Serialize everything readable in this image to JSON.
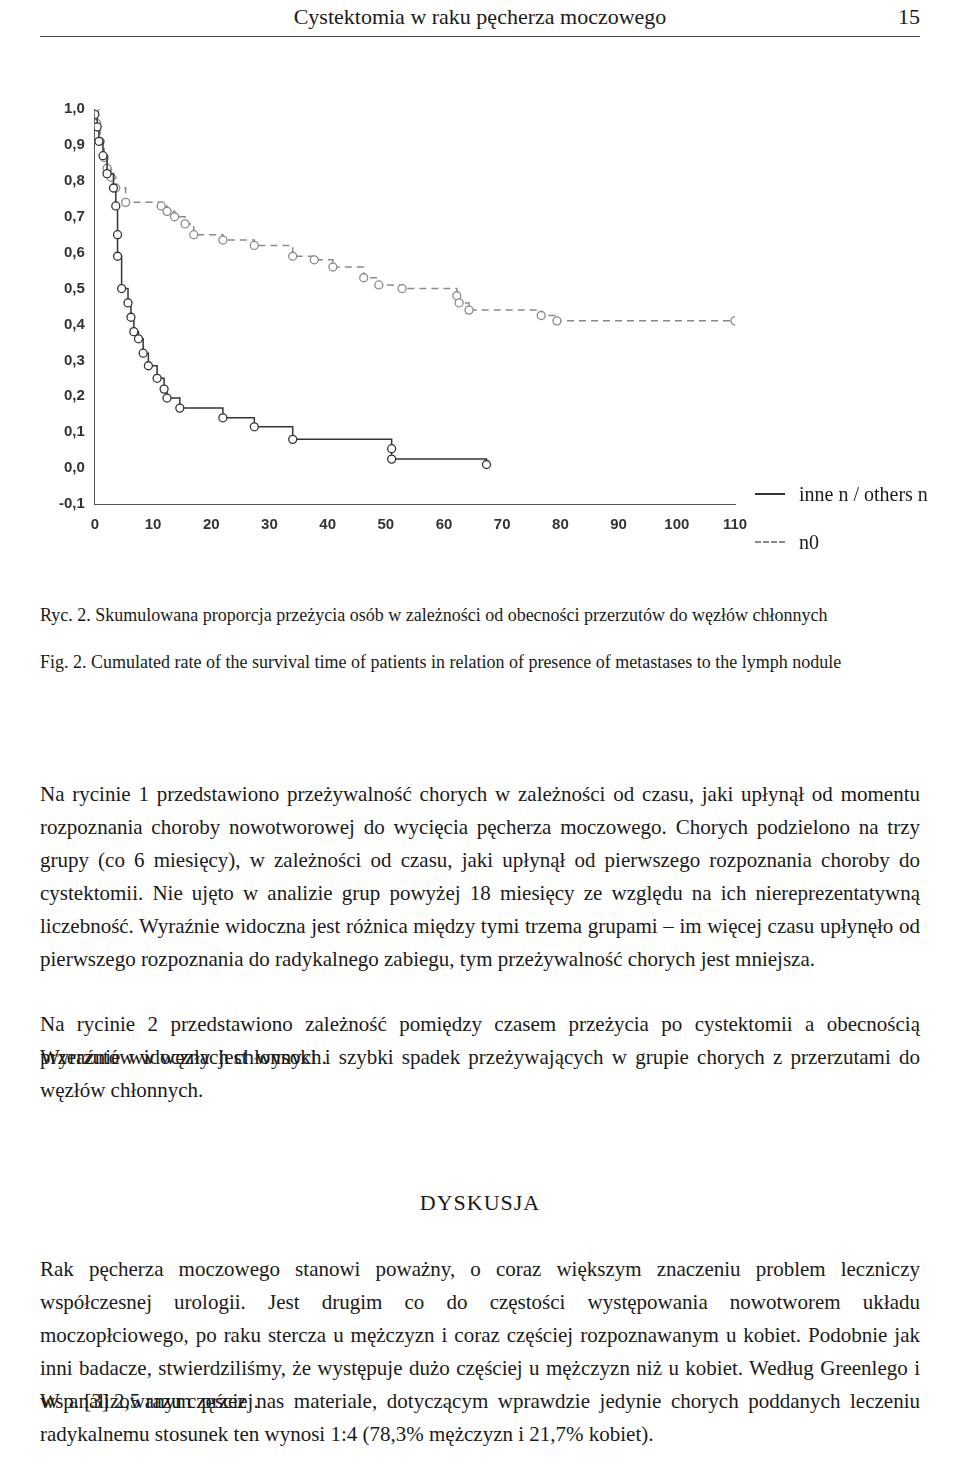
{
  "header": {
    "title": "Cystektomia w raku pęcherza moczowego",
    "page": "15"
  },
  "chart_data": {
    "type": "line",
    "xlim": [
      0,
      110
    ],
    "xticks": [
      0,
      10,
      20,
      30,
      40,
      50,
      60,
      70,
      80,
      90,
      100,
      110
    ],
    "ylim": [
      -0.1,
      1.0
    ],
    "yticks": [
      {
        "value": -0.1,
        "label": "-0,1"
      },
      {
        "value": 0,
        "label": "0,0"
      },
      {
        "value": 0.1,
        "label": "0,1"
      },
      {
        "value": 0.2,
        "label": "0,2"
      },
      {
        "value": 0.3,
        "label": "0,3"
      },
      {
        "value": 0.4,
        "label": "0,4"
      },
      {
        "value": 0.5,
        "label": "0,5"
      },
      {
        "value": 0.6,
        "label": "0,6"
      },
      {
        "value": 0.7,
        "label": "0,7"
      },
      {
        "value": 0.8,
        "label": "0,8"
      },
      {
        "value": 0.9,
        "label": "0,9"
      },
      {
        "value": 1,
        "label": "1,0"
      }
    ],
    "grid": false,
    "legend": "right",
    "series": [
      {
        "name": "inne n / others n",
        "color": "#333333",
        "line_style": "solid",
        "marker": "circle",
        "x": [
          0,
          0.4,
          0.7,
          1.4,
          2.1,
          3.2,
          3.6,
          3.9,
          3.9,
          4.6,
          5.7,
          6.2,
          6.7,
          7.5,
          8.3,
          9.2,
          10.7,
          11.9,
          12.4,
          14.6,
          22,
          27.4,
          34,
          51,
          51,
          67.3
        ],
        "values": [
          0.985,
          0.95,
          0.91,
          0.87,
          0.82,
          0.78,
          0.73,
          0.65,
          0.59,
          0.5,
          0.46,
          0.42,
          0.38,
          0.36,
          0.32,
          0.285,
          0.25,
          0.22,
          0.195,
          0.167,
          0.14,
          0.115,
          0.08,
          0.054,
          0.025,
          0.01
        ]
      },
      {
        "name": "n0",
        "color": "#8a8a8a",
        "line_style": "dashed",
        "marker": "circle",
        "x": [
          0,
          0.3,
          0.9,
          1.6,
          2.1,
          2.8,
          3.6,
          5.3,
          11.4,
          12.4,
          13.7,
          15.5,
          17,
          22,
          27.4,
          34,
          37.7,
          40.9,
          46.2,
          48.8,
          52.8,
          62.2,
          62.6,
          64.3,
          76.7,
          79.4,
          110
        ],
        "values": [
          1,
          0.96,
          0.91,
          0.865,
          0.835,
          0.81,
          0.78,
          0.74,
          0.73,
          0.715,
          0.7,
          0.68,
          0.65,
          0.635,
          0.62,
          0.59,
          0.58,
          0.56,
          0.53,
          0.51,
          0.5,
          0.48,
          0.46,
          0.44,
          0.425,
          0.41,
          0.41
        ]
      }
    ]
  },
  "captions": {
    "pl": "Ryc. 2. Skumulowana proporcja przeżycia osób w zależności od obecności przerzutów do węzłów chłonnych",
    "en": "Fig. 2. Cumulated rate of the survival time of patients in relation of presence of metastases to the lymph nodule"
  },
  "body": {
    "paragraphs": [
      "Na rycinie 1 przedstawiono przeżywalność chorych w zależności od czasu, jaki upłynął od momentu rozpoznania choroby nowotworowej do wycięcia pęcherza moczowego. Chorych podzielono na trzy grupy (co 6 miesięcy), w zależności od czasu, jaki upłynął od pierwszego rozpoznania choroby do cystektomii. Nie ujęto w analizie grup powyżej 18 miesięcy ze względu na ich niereprezentatywną liczebność. Wyraźnie widoczna jest różnica między tymi trzema grupami – im więcej czasu upłynęło od pierwszego rozpoznania do radykalnego zabiegu, tym przeżywalność chorych jest mniejsza.",
      "Na rycinie 2 przedstawiono zależność pomiędzy czasem przeżycia po cystektomii a obecnością przerzutów w węzłach chłonnych.",
      "Wyraźnie widoczny jest wysoki i szybki spadek przeżywających w grupie chorych z przerzutami do węzłów chłonnych."
    ],
    "heading": "DYSKUSJA",
    "discussion": [
      "Rak pęcherza moczowego stanowi poważny, o coraz większym znaczeniu problem leczniczy współczesnej urologii. Jest drugim co do częstości występowania nowotworem układu moczopłciowego, po raku stercza u mężczyzn i coraz częściej rozpoznawanym u kobiet. Podobnie jak inni badacze, stwierdziliśmy, że występuje dużo częściej u mężczyzn niż u kobiet. Według Greenlego i wsp. [3] 2,5 razu częściej.",
      "W analizowanym przez nas materiale, dotyczącym wprawdzie jedynie chorych poddanych leczeniu radykalnemu stosunek ten wynosi 1:4 (78,3% mężczyzn i 21,7% kobiet)."
    ]
  }
}
